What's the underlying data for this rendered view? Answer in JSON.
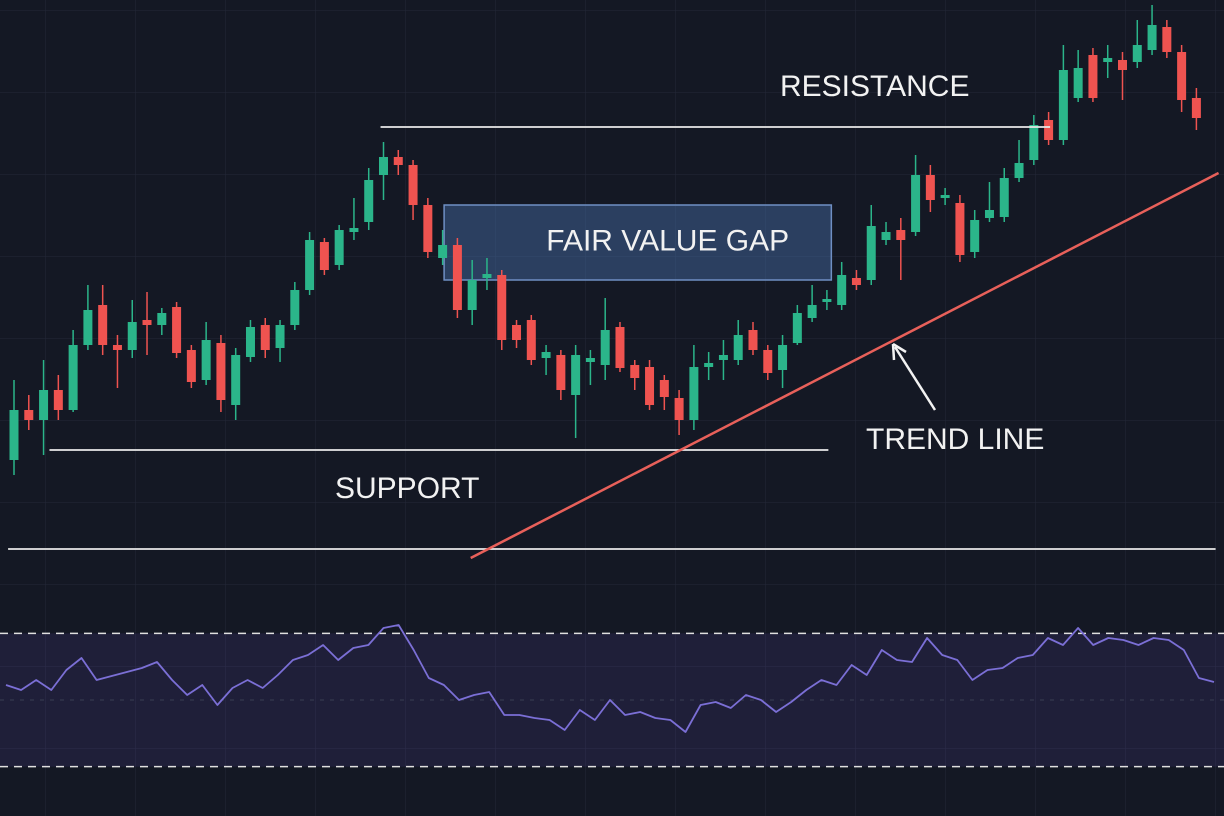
{
  "chart_data": [
    {
      "type": "candlestick",
      "up_color": "#2bb58a",
      "down_color": "#ef5350",
      "ylim": [
        0,
        600
      ],
      "open": [
        140,
        190,
        180,
        210,
        190,
        255,
        295,
        255,
        250,
        280,
        275,
        293,
        250,
        220,
        257,
        195,
        243,
        275,
        252,
        275,
        310,
        358,
        335,
        368,
        378,
        425,
        443,
        435,
        395,
        342,
        355,
        290,
        322,
        325,
        275,
        280,
        242,
        245,
        205,
        238,
        235,
        273,
        235,
        233,
        220,
        202,
        180,
        233,
        240,
        240,
        270,
        250,
        230,
        257,
        282,
        298,
        295,
        322,
        320,
        360,
        370,
        368,
        425,
        402,
        397,
        348,
        382,
        383,
        422,
        440,
        480,
        460,
        502,
        545,
        538,
        540,
        538,
        550,
        573,
        548,
        502
      ],
      "high": [
        220,
        205,
        240,
        225,
        270,
        315,
        315,
        265,
        300,
        308,
        292,
        298,
        255,
        278,
        265,
        252,
        280,
        282,
        280,
        318,
        368,
        362,
        375,
        402,
        432,
        458,
        450,
        440,
        402,
        370,
        362,
        340,
        342,
        330,
        280,
        285,
        255,
        250,
        255,
        250,
        302,
        278,
        240,
        240,
        225,
        210,
        255,
        248,
        260,
        280,
        278,
        255,
        265,
        295,
        315,
        310,
        338,
        330,
        395,
        378,
        382,
        445,
        435,
        412,
        405,
        390,
        418,
        432,
        460,
        485,
        488,
        555,
        550,
        552,
        555,
        548,
        580,
        595,
        580,
        555,
        512
      ],
      "low": [
        125,
        170,
        145,
        180,
        188,
        250,
        245,
        212,
        242,
        245,
        265,
        242,
        212,
        215,
        188,
        180,
        238,
        242,
        238,
        270,
        305,
        325,
        330,
        360,
        370,
        400,
        425,
        380,
        342,
        335,
        282,
        275,
        310,
        250,
        252,
        235,
        225,
        200,
        162,
        215,
        220,
        228,
        210,
        190,
        190,
        165,
        170,
        220,
        220,
        235,
        245,
        220,
        212,
        255,
        278,
        290,
        290,
        310,
        315,
        355,
        320,
        364,
        388,
        395,
        338,
        342,
        378,
        378,
        418,
        435,
        455,
        455,
        498,
        498,
        522,
        500,
        532,
        545,
        542,
        488,
        470
      ],
      "close": [
        190,
        180,
        210,
        190,
        255,
        290,
        255,
        250,
        278,
        275,
        287,
        247,
        218,
        260,
        200,
        245,
        273,
        250,
        275,
        310,
        360,
        330,
        370,
        372,
        420,
        443,
        435,
        395,
        348,
        355,
        290,
        320,
        326,
        260,
        260,
        240,
        248,
        210,
        245,
        242,
        270,
        232,
        222,
        195,
        203,
        180,
        233,
        237,
        245,
        265,
        250,
        227,
        255,
        287,
        295,
        301,
        325,
        315,
        374,
        368,
        360,
        425,
        400,
        405,
        345,
        380,
        390,
        422,
        437,
        475,
        460,
        530,
        532,
        502,
        542,
        530,
        555,
        575,
        548,
        500,
        482
      ],
      "hlines": [
        {
          "value": 473,
          "x": [
            24.8,
            70.1
          ],
          "label": "RESISTANCE"
        },
        {
          "value": 150,
          "x": [
            2.4,
            55.1
          ],
          "label": "SUPPORT"
        },
        {
          "value": 51,
          "x": [
            -0.4,
            81.3
          ]
        }
      ],
      "zone": {
        "label": "FAIR VALUE GAP",
        "x": [
          29.1,
          55.3
        ],
        "range": [
          320,
          395
        ]
      },
      "trend_line": {
        "label": "TREND LINE",
        "x": [
          30.9,
          81.5
        ],
        "values": [
          42,
          427
        ],
        "color": "#e8605a"
      }
    },
    {
      "type": "line",
      "color": "#7b6fd6",
      "ylim": [
        20,
        80
      ],
      "levels": [
        70,
        50,
        30
      ],
      "values": [
        54.5,
        53,
        56,
        53,
        59,
        62.6,
        56,
        57.2,
        58.4,
        59.6,
        61.4,
        56,
        51.5,
        54.5,
        48.5,
        53.6,
        56,
        53.6,
        57.5,
        62,
        63.5,
        66.5,
        62,
        65.6,
        66.5,
        71.6,
        72.5,
        65,
        56.6,
        54.5,
        50,
        51.5,
        52.4,
        45.5,
        45.5,
        44.6,
        44,
        41,
        47,
        44,
        50,
        45.5,
        46.4,
        44.6,
        44,
        40.4,
        48.5,
        49.4,
        47.6,
        51.5,
        50,
        46.4,
        49.4,
        53,
        56,
        54.5,
        60.5,
        57.5,
        65,
        62,
        61.4,
        68.6,
        63.5,
        62,
        56,
        59,
        59.6,
        62.6,
        63.5,
        68.6,
        66.5,
        71.6,
        66.5,
        68.6,
        68,
        66.5,
        68.6,
        68,
        65,
        56.6,
        55.4
      ]
    }
  ]
}
